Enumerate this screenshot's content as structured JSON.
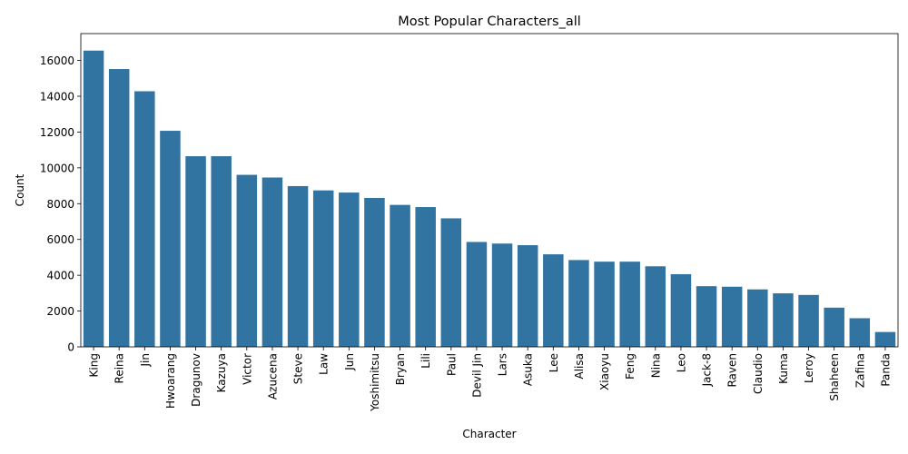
{
  "chart_data": {
    "type": "bar",
    "title": "Most Popular Characters_all",
    "xlabel": "Character",
    "ylabel": "Count",
    "ylim": [
      0,
      17500
    ],
    "yticks": [
      0,
      2000,
      4000,
      6000,
      8000,
      10000,
      12000,
      14000,
      16000
    ],
    "ytick_labels": [
      "0",
      "2000",
      "4000",
      "6000",
      "8000",
      "10000",
      "12000",
      "14000",
      "16000"
    ],
    "bar_color": "#3274a1",
    "grid": false,
    "categories": [
      "King",
      "Reina",
      "Jin",
      "Hwoarang",
      "Dragunov",
      "Kazuya",
      "Victor",
      "Azucena",
      "Steve",
      "Law",
      "Jun",
      "Yoshimitsu",
      "Bryan",
      "Lili",
      "Paul",
      "Devil Jin",
      "Lars",
      "Asuka",
      "Lee",
      "Alisa",
      "Xiaoyu",
      "Feng",
      "Nina",
      "Leo",
      "Jack-8",
      "Raven",
      "Claudio",
      "Kuma",
      "Leroy",
      "Shaheen",
      "Zafina",
      "Panda"
    ],
    "values": [
      16550,
      15520,
      14280,
      12070,
      10650,
      10650,
      9610,
      9460,
      8980,
      8740,
      8620,
      8320,
      7930,
      7810,
      7180,
      5860,
      5770,
      5680,
      5170,
      4850,
      4760,
      4760,
      4500,
      4060,
      3390,
      3360,
      3210,
      2990,
      2900,
      2190,
      1600,
      830
    ]
  }
}
